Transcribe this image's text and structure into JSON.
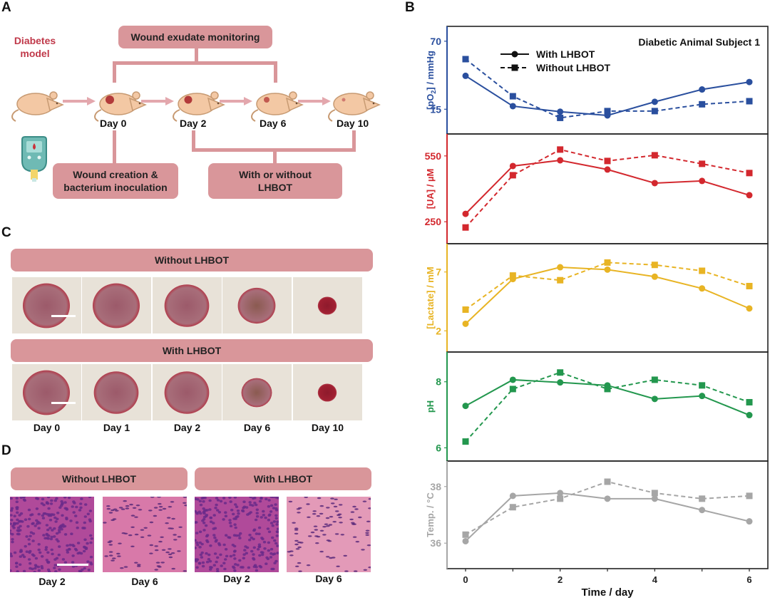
{
  "panel_letters": {
    "a": "A",
    "b": "B",
    "c": "C",
    "d": "D"
  },
  "panel_a": {
    "model_label": "Diabetes\nmodel",
    "model_label_line1": "Diabetes",
    "model_label_line2": "model",
    "monitoring_box": "Wound exudate monitoring",
    "creation_box_line1": "Wound creation &",
    "creation_box_line2": "bacterium inoculation",
    "treatment_box_line1": "With or without",
    "treatment_box_line2": "LHBOT",
    "days": [
      "Day 0",
      "Day 2",
      "Day 6",
      "Day 10"
    ],
    "icons": [
      "mouse-icon",
      "wounded-mouse-icon",
      "arrow-right-icon",
      "glucometer-icon"
    ],
    "colors": {
      "box": "#d9969a",
      "label_red": "#c0394a",
      "mouse_body": "#f3c8a4",
      "mouse_outline": "#c79a72",
      "wound": "#b23a3a"
    }
  },
  "panel_c": {
    "without_header": "Without LHBOT",
    "with_header": "With LHBOT",
    "days": [
      "Day 0",
      "Day 1",
      "Day 2",
      "Day 6",
      "Day 10"
    ],
    "wound_size_without": [
      1.0,
      1.0,
      0.95,
      0.8,
      0.4
    ],
    "wound_size_with": [
      1.0,
      0.95,
      0.95,
      0.65,
      0.4
    ]
  },
  "panel_d": {
    "without_header": "Without LHBOT",
    "with_header": "With LHBOT",
    "days": [
      "Day 2",
      "Day 6",
      "Day 2",
      "Day 6"
    ]
  },
  "chart_data": {
    "type": "line",
    "title": "Diabetic Animal Subject 1",
    "xlabel": "Time / day",
    "x": [
      0,
      1,
      2,
      3,
      4,
      5,
      6
    ],
    "xticks": [
      "0",
      "2",
      "4",
      "6"
    ],
    "xlim": [
      -0.35,
      6.35
    ],
    "legend": {
      "placement": "top-left",
      "entries": [
        {
          "label": "With LHBOT",
          "style": "solid",
          "marker": "circle"
        },
        {
          "label": "Without LHBOT",
          "style": "dashed",
          "marker": "square"
        }
      ]
    },
    "panels": [
      {
        "ylabel": "[pO2] / mmHg",
        "ylabel_main": "[pO",
        "ylabel_sub": "2",
        "ylabel_rest": "] / mmHg",
        "color": "#2a4f9e",
        "yticks": [
          "15",
          "70"
        ],
        "ytick_values": [
          15,
          70
        ],
        "ylim": [
          -5,
          82
        ],
        "series": [
          {
            "name": "With LHBOT",
            "values": [
              42,
              17.5,
              13,
              10,
              21,
              31,
              37
            ]
          },
          {
            "name": "Without LHBOT",
            "values": [
              55.5,
              25.5,
              8,
              13.5,
              13.5,
              19,
              21.5
            ]
          }
        ]
      },
      {
        "ylabel": "[UA] / µM",
        "color": "#d3282e",
        "yticks": [
          "250",
          "550"
        ],
        "ytick_values": [
          250,
          550
        ],
        "ylim": [
          150,
          650
        ],
        "series": [
          {
            "name": "With LHBOT",
            "values": [
              286,
              504,
              530,
              488,
              426,
              436,
              371
            ]
          },
          {
            "name": "Without LHBOT",
            "values": [
              224,
              462,
              579,
              527,
              553,
              514,
              472
            ]
          }
        ]
      },
      {
        "ylabel": "[Lactate] / mM",
        "color": "#e8b424",
        "yticks": [
          "2",
          "7"
        ],
        "ytick_values": [
          2,
          7
        ],
        "ylim": [
          0.2,
          9.4
        ],
        "series": [
          {
            "name": "With LHBOT",
            "values": [
              2.6,
              6.4,
              7.4,
              7.2,
              6.6,
              5.6,
              3.9
            ]
          },
          {
            "name": "Without LHBOT",
            "values": [
              3.8,
              6.7,
              6.3,
              7.8,
              7.6,
              7.1,
              5.8
            ]
          }
        ]
      },
      {
        "ylabel": "pH",
        "color": "#23974e",
        "yticks": [
          "6",
          "8"
        ],
        "ytick_values": [
          6,
          8
        ],
        "ylim": [
          5.6,
          8.9
        ],
        "series": [
          {
            "name": "With LHBOT",
            "values": [
              7.27,
              8.06,
              7.98,
              7.89,
              7.48,
              7.57,
              6.99
            ]
          },
          {
            "name": "Without LHBOT",
            "values": [
              6.19,
              7.78,
              8.28,
              7.78,
              8.06,
              7.89,
              7.38
            ]
          }
        ]
      },
      {
        "ylabel": "Temp. / °C",
        "color": "#a6a6a6",
        "yticks": [
          "36",
          "38"
        ],
        "ytick_values": [
          36,
          38
        ],
        "ylim": [
          35.1,
          38.9
        ],
        "series": [
          {
            "name": "With LHBOT",
            "values": [
              36.07,
              37.67,
              37.77,
              37.57,
              37.57,
              37.17,
              36.77
            ]
          },
          {
            "name": "Without LHBOT",
            "values": [
              36.3,
              37.27,
              37.57,
              38.17,
              37.77,
              37.57,
              37.67
            ]
          }
        ]
      }
    ]
  }
}
